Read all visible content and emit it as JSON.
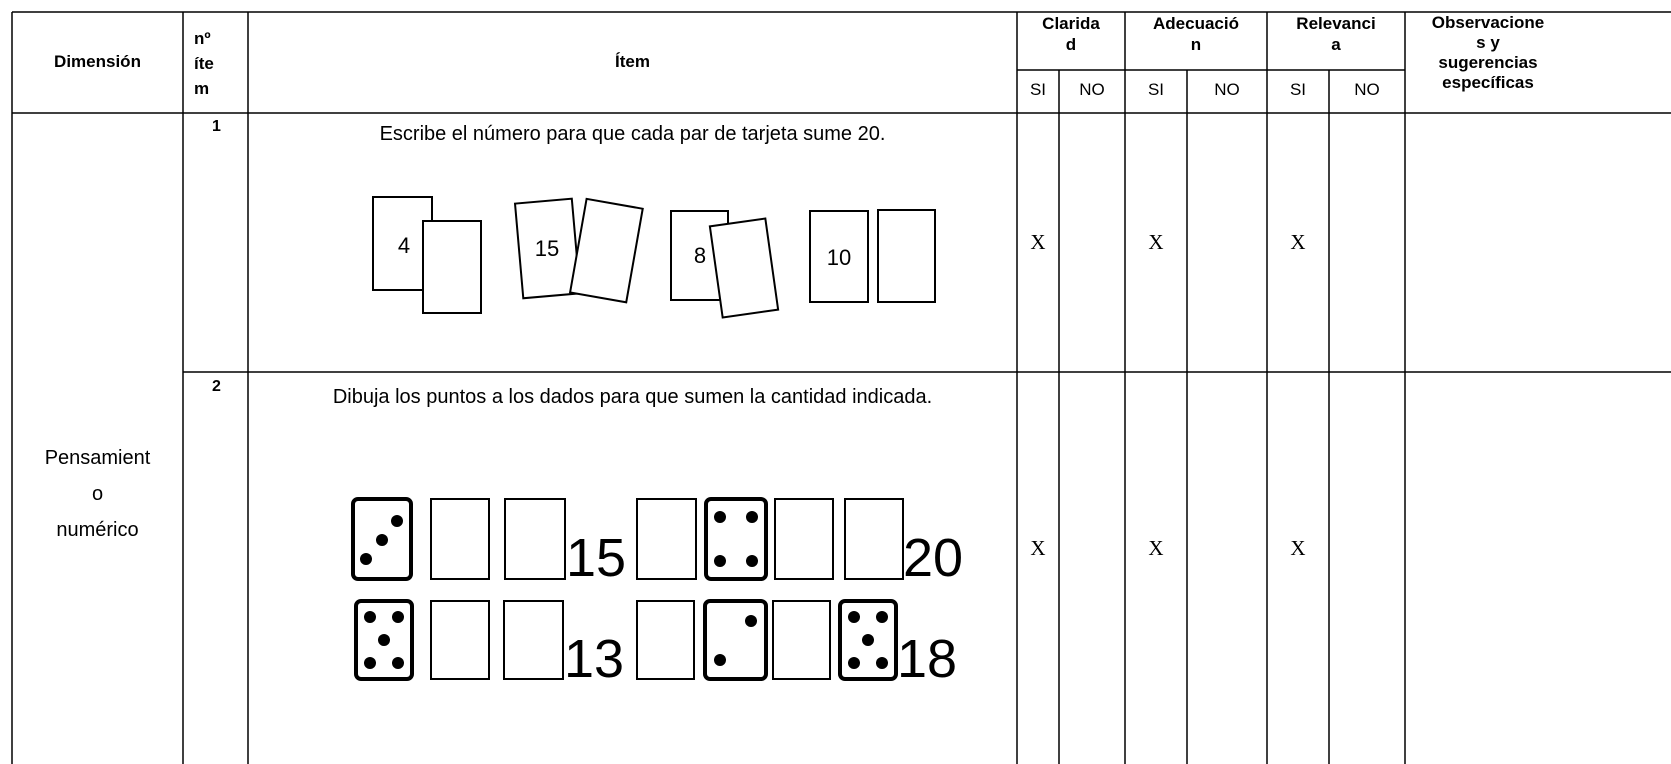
{
  "table": {
    "header": {
      "dimension": "Dimensión",
      "item_number": "nº\níte\nm",
      "item": "Ítem",
      "criteria": [
        {
          "name": "Clarida\nd",
          "yes": "SI",
          "no": "NO"
        },
        {
          "name": "Adecuació\nn",
          "yes": "SI",
          "no": "NO"
        },
        {
          "name": "Relevanci\na",
          "yes": "SI",
          "no": "NO"
        }
      ],
      "observations": "Observacione\ns y\nsugerencias\nespecíficas"
    },
    "dimension": "Pensamient\no\nnumérico",
    "rows": [
      {
        "number": "1",
        "instruction": "Escribe el número para que cada par de tarjeta sume 20.",
        "cards": [
          "4",
          "15",
          "8",
          "10"
        ],
        "marks": [
          "X",
          "X",
          "X"
        ]
      },
      {
        "number": "2",
        "instruction": "Dibuja los puntos a los dados para que sumen la cantidad indicada.",
        "sums": [
          "15",
          "20",
          "13",
          "18"
        ],
        "marks": [
          "X",
          "X",
          "X"
        ]
      }
    ]
  }
}
